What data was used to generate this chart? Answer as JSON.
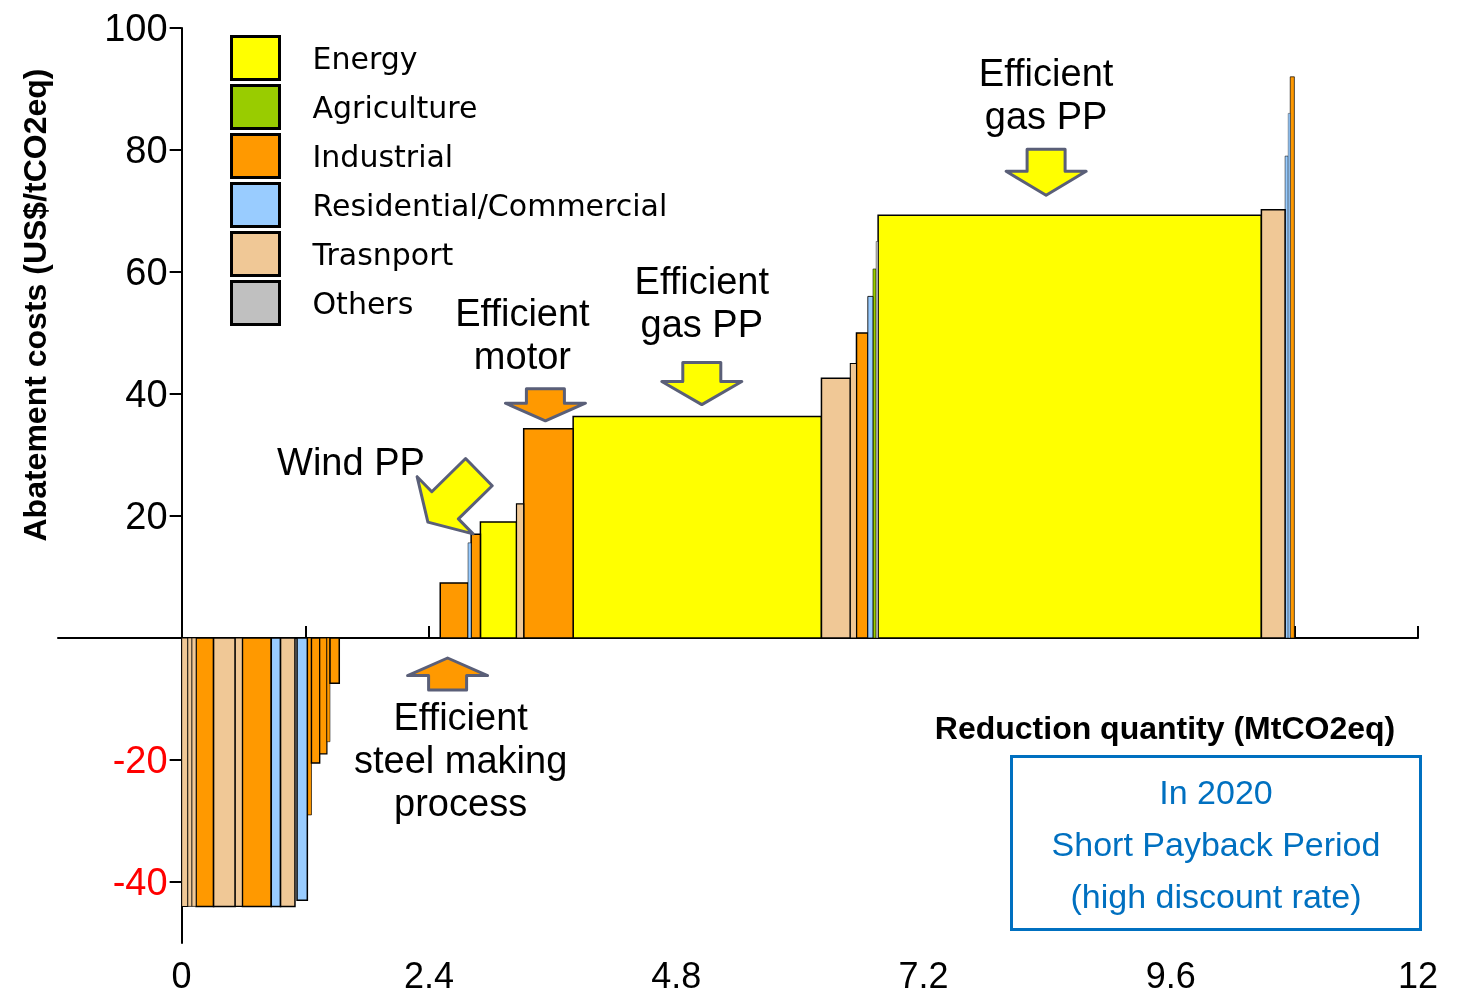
{
  "chart_data": {
    "type": "histogram",
    "xlabel": "Reduction quantity (MtCO2eq)",
    "ylabel": "Abatement costs (US$/tCO2eq)",
    "bins": [
      0,
      0.06,
      0.1,
      0.14,
      0.31,
      0.52,
      0.59,
      0.87,
      0.96,
      1.1,
      1.12,
      1.22,
      1.26,
      1.34,
      1.41,
      1.44,
      1.53,
      2.51,
      2.78,
      2.81,
      2.9,
      3.25,
      3.32,
      3.8,
      6.21,
      6.49,
      6.55,
      6.66,
      6.71,
      6.74,
      6.76,
      10.48,
      10.71,
      10.74,
      10.76,
      10.8
    ],
    "series": [
      {
        "name": "Energy",
        "color": "#ffff00",
        "values": [
          null,
          null,
          null,
          null,
          null,
          null,
          null,
          null,
          null,
          null,
          null,
          null,
          null,
          null,
          null,
          null,
          null,
          null,
          null,
          null,
          19,
          null,
          null,
          36.3,
          null,
          null,
          null,
          null,
          null,
          null,
          69.3,
          null,
          null,
          null,
          null
        ]
      },
      {
        "name": "Agriculture",
        "color": "#99cc00",
        "values": [
          null,
          null,
          null,
          null,
          null,
          null,
          null,
          null,
          null,
          null,
          null,
          null,
          null,
          null,
          null,
          null,
          null,
          null,
          null,
          null,
          null,
          null,
          null,
          null,
          null,
          null,
          null,
          null,
          60.5,
          null,
          null,
          null,
          null,
          null,
          null
        ]
      },
      {
        "name": "Industrial",
        "color": "#ff9900",
        "values": [
          null,
          null,
          null,
          -44,
          null,
          null,
          -44,
          null,
          null,
          null,
          null,
          -29,
          -20.5,
          -19,
          -17,
          -7.4,
          null,
          9,
          null,
          17,
          null,
          null,
          34.3,
          null,
          null,
          null,
          50,
          null,
          null,
          null,
          null,
          null,
          null,
          null,
          92
        ]
      },
      {
        "name": "Residential/Commercial",
        "color": "#99ccff",
        "values": [
          null,
          null,
          null,
          null,
          null,
          null,
          null,
          -44,
          null,
          null,
          -43,
          null,
          null,
          null,
          null,
          null,
          null,
          null,
          15.6,
          null,
          null,
          null,
          null,
          null,
          null,
          null,
          null,
          56,
          null,
          null,
          null,
          null,
          79,
          86,
          null
        ]
      },
      {
        "name": "Trasnport",
        "color": "#f0c896",
        "values": [
          -44,
          -44,
          -44,
          null,
          -44,
          -44,
          null,
          null,
          -44,
          null,
          null,
          null,
          null,
          null,
          null,
          null,
          null,
          null,
          null,
          null,
          null,
          22,
          null,
          null,
          42.6,
          45,
          null,
          null,
          null,
          null,
          null,
          70.2,
          null,
          null,
          null
        ]
      },
      {
        "name": "Others",
        "color": "#c0c0c0",
        "values": [
          null,
          null,
          null,
          null,
          null,
          null,
          null,
          null,
          null,
          null,
          null,
          null,
          null,
          null,
          null,
          null,
          null,
          null,
          null,
          null,
          null,
          null,
          null,
          null,
          null,
          null,
          null,
          null,
          null,
          65,
          null,
          null,
          null,
          null,
          null
        ]
      }
    ],
    "xlim": [
      -1.2,
      12
    ],
    "ylim": [
      -50,
      100
    ],
    "xticks": [
      0,
      {
        "value": 1.2,
        "label": null
      },
      2.4,
      {
        "value": 3.6,
        "label": null
      },
      4.8,
      {
        "value": 6.0,
        "label": null
      },
      7.2,
      {
        "value": 8.4,
        "label": null
      },
      9.6,
      {
        "value": 10.8,
        "label": null
      },
      12
    ],
    "yticks": [
      -40,
      -20,
      {
        "value": 0,
        "label": null
      },
      20,
      40,
      60,
      80,
      100
    ],
    "legend": "top left",
    "annotations": [
      {
        "text": "Wind PP",
        "x": 3.07,
        "y": 19
      },
      {
        "text": "Efficient\nmotor",
        "x": 3.56,
        "y": 34.3
      },
      {
        "text": "Efficient\ngas PP",
        "x": 5.0,
        "y": 36.3
      },
      {
        "text": "Efficient\ngas PP",
        "x": 8.4,
        "y": 69.3
      },
      {
        "text": "Efficient\nsteel making\nprocess",
        "x": 2.64,
        "y": 0
      },
      "In 2020\nShort Payback Period\n(high discount rate)"
    ]
  }
}
